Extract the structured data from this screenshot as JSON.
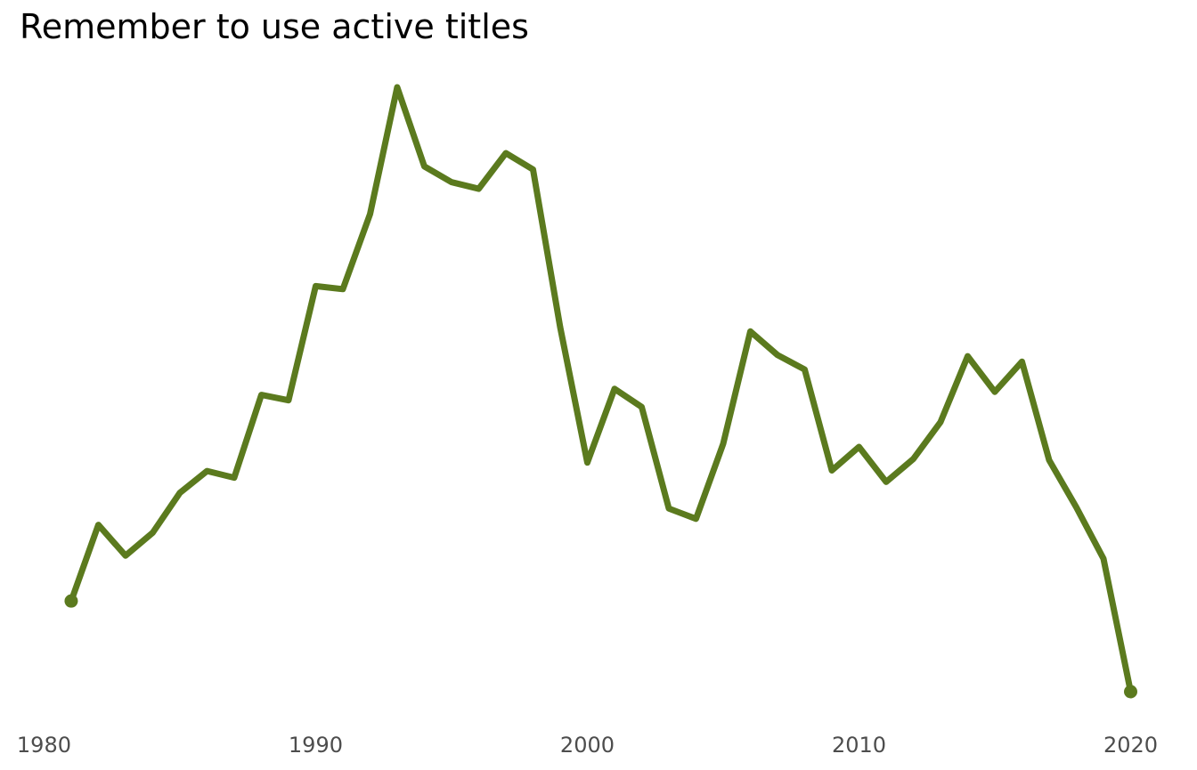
{
  "chart_data": {
    "type": "line",
    "title": "Remember to use active titles",
    "xlabel": "",
    "ylabel": "",
    "x_ticks": [
      1980,
      1990,
      2000,
      2010,
      2020
    ],
    "xlim": [
      1979.1,
      2021.0
    ],
    "ylim": [
      0,
      100
    ],
    "grid": false,
    "y_axis_labels": false,
    "line_color": "#5b7a1e",
    "endpoint_markers": true,
    "series": [
      {
        "name": "",
        "x": [
          1981,
          1982,
          1983,
          1984,
          1985,
          1986,
          1987,
          1988,
          1989,
          1990,
          1991,
          1992,
          1993,
          1994,
          1995,
          1996,
          1997,
          1998,
          1999,
          2000,
          2001,
          2002,
          2003,
          2004,
          2005,
          2006,
          2007,
          2008,
          2009,
          2010,
          2011,
          2012,
          2013,
          2014,
          2015,
          2016,
          2017,
          2018,
          2019,
          2020
        ],
        "y": [
          15.0,
          27.6,
          22.5,
          26.3,
          32.9,
          36.5,
          35.4,
          49.1,
          48.2,
          67.1,
          66.6,
          79.0,
          100.0,
          86.9,
          84.3,
          83.2,
          89.1,
          86.4,
          60.3,
          37.9,
          50.1,
          47.1,
          30.3,
          28.6,
          41.0,
          59.6,
          55.7,
          53.3,
          36.6,
          40.5,
          34.7,
          38.5,
          44.6,
          55.5,
          49.6,
          54.6,
          38.3,
          30.5,
          22.0,
          0.0
        ]
      }
    ]
  }
}
